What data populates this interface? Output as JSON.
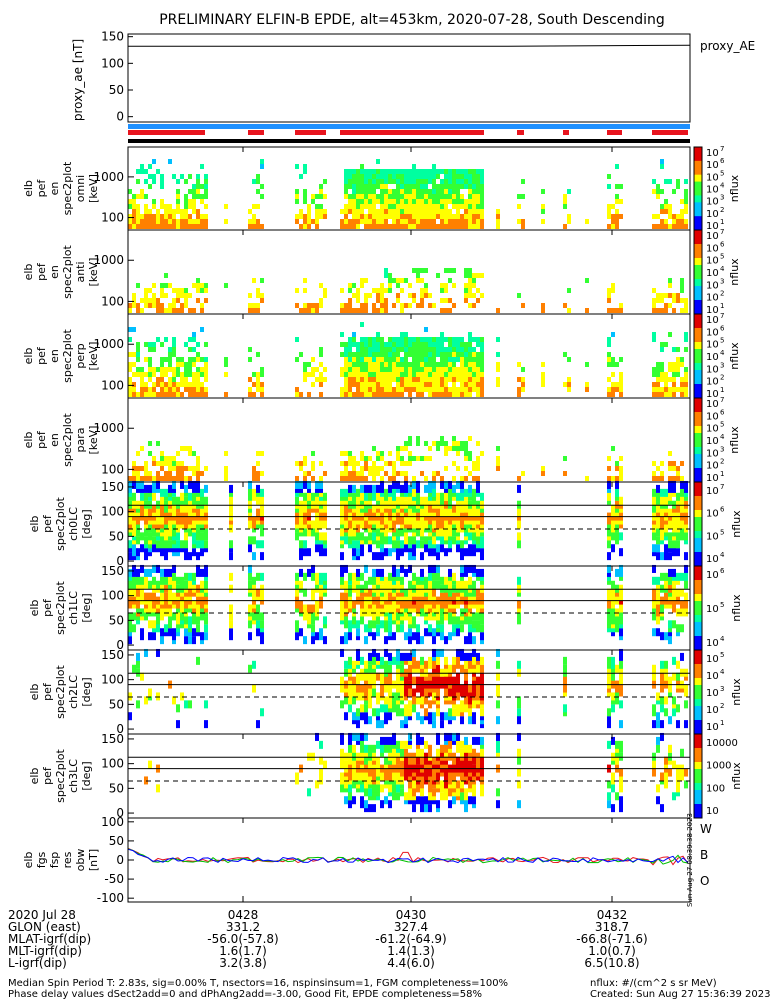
{
  "title": "PRELIMINARY ELFIN-B EPDE, alt=453km, 2020-07-28, South Descending",
  "colors": {
    "bar_blue": "#1e90ff",
    "bar_red": "#e8141e",
    "bar_black": "#000000"
  },
  "chart_data": [
    {
      "type": "line",
      "panel": "proxy_ae",
      "ylabel": "proxy_ae [nT]",
      "legend": "proxy_AE",
      "yticks": [
        "150",
        "100",
        "50",
        "0"
      ],
      "ylim": [
        -10,
        155
      ],
      "series": [
        {
          "name": "proxy_AE",
          "values": [
            132,
            132,
            132,
            132,
            132,
            133,
            134
          ]
        }
      ]
    },
    {
      "type": "heatmap",
      "panel": "spectra",
      "panels": [
        {
          "ylabel": [
            "elb",
            "pef",
            "en",
            "spec2plot",
            "omni",
            "[keV]"
          ],
          "yticks": [
            "1000",
            "100"
          ],
          "colorbar_ticks": [
            "10",
            "10",
            "10",
            "10",
            "10",
            "10",
            "10"
          ],
          "colorbar_exps": [
            "7",
            "6",
            "5",
            "4",
            "3",
            "2",
            "1"
          ],
          "zlabel": "nflux"
        },
        {
          "ylabel": [
            "elb",
            "pef",
            "en",
            "spec2plot",
            "anti",
            "[keV]"
          ],
          "yticks": [
            "1000",
            "100"
          ],
          "colorbar_ticks": [
            "10",
            "10",
            "10",
            "10",
            "10",
            "10",
            "10"
          ],
          "colorbar_exps": [
            "7",
            "6",
            "5",
            "4",
            "3",
            "2",
            "1"
          ],
          "zlabel": "nflux"
        },
        {
          "ylabel": [
            "elb",
            "pef",
            "en",
            "spec2plot",
            "perp",
            "[keV]"
          ],
          "yticks": [
            "1000",
            "100"
          ],
          "colorbar_ticks": [
            "10",
            "10",
            "10",
            "10",
            "10",
            "10",
            "10"
          ],
          "colorbar_exps": [
            "7",
            "6",
            "5",
            "4",
            "3",
            "2",
            "1"
          ],
          "zlabel": "nflux"
        },
        {
          "ylabel": [
            "elb",
            "pef",
            "en",
            "spec2plot",
            "para",
            "[keV]"
          ],
          "yticks": [
            "1000",
            "100"
          ],
          "colorbar_ticks": [
            "10",
            "10",
            "10",
            "10",
            "10",
            "10",
            "10"
          ],
          "colorbar_exps": [
            "7",
            "6",
            "5",
            "4",
            "3",
            "2",
            "1"
          ],
          "zlabel": "nflux"
        }
      ]
    },
    {
      "type": "heatmap",
      "panel": "pitch_angle",
      "panels": [
        {
          "ylabel": [
            "elb",
            "pef",
            "spec2plot",
            "ch0LC",
            "[deg]"
          ],
          "yticks": [
            "150",
            "100",
            "50",
            "0"
          ],
          "colorbar_ticks": [
            "10",
            "10",
            "10",
            "10"
          ],
          "colorbar_exps": [
            "7",
            "6",
            "5",
            "4"
          ],
          "zlabel": "nflux"
        },
        {
          "ylabel": [
            "elb",
            "pef",
            "spec2plot",
            "ch1LC",
            "[deg]"
          ],
          "yticks": [
            "150",
            "100",
            "50",
            "0"
          ],
          "colorbar_ticks": [
            "10",
            "10",
            "10"
          ],
          "colorbar_exps": [
            "6",
            "5",
            "4"
          ],
          "zlabel": "nflux"
        },
        {
          "ylabel": [
            "elb",
            "pef",
            "spec2plot",
            "ch2LC",
            "[deg]"
          ],
          "yticks": [
            "150",
            "100",
            "50",
            "0"
          ],
          "colorbar_ticks": [
            "10",
            "10",
            "10",
            "10",
            "10"
          ],
          "colorbar_exps": [
            "5",
            "4",
            "3",
            "2",
            "1"
          ],
          "zlabel": "nflux"
        },
        {
          "ylabel": [
            "elb",
            "pef",
            "spec2plot",
            "ch3LC",
            "[deg]"
          ],
          "yticks": [
            "150",
            "100",
            "50",
            "0"
          ],
          "colorbar_ticks": [
            "10000",
            "1000",
            "100",
            "10"
          ],
          "colorbar_exps": [
            "",
            "",
            "",
            ""
          ],
          "zlabel": "nflux"
        }
      ]
    },
    {
      "type": "line",
      "panel": "fgm",
      "ylabel": [
        "elb",
        "fgs",
        "fsp",
        "res",
        "obw",
        "[nT]"
      ],
      "yticks": [
        "100",
        "50",
        "0",
        "-50",
        "-100"
      ],
      "ylim": [
        -110,
        110
      ],
      "legend": [
        {
          "name": "W",
          "color": "#e8141e"
        },
        {
          "name": "B",
          "color": "#00c000"
        },
        {
          "name": "O",
          "color": "#0000ff"
        }
      ],
      "stamp": "Sun Aug 27 08:39:38 2023"
    }
  ],
  "xaxis": {
    "labels": [
      "2020 Jul 28",
      "GLON (east)",
      "MLAT-igrf(dip)",
      "MLT-igrf(dip)",
      "L-igrf(dip)"
    ],
    "ticks": [
      {
        "time": "0428",
        "glon": "331.2",
        "mlat": "-56.0(-57.8)",
        "mlt": "1.6(1.7)",
        "l": "3.2(3.8)"
      },
      {
        "time": "0430",
        "glon": "327.4",
        "mlat": "-61.2(-64.9)",
        "mlt": "1.4(1.3)",
        "l": "4.4(6.0)"
      },
      {
        "time": "0432",
        "glon": "318.7",
        "mlat": "-66.8(-71.6)",
        "mlt": "1.0(0.7)",
        "l": "6.5(10.8)"
      }
    ]
  },
  "footer": {
    "line1_left": "Median Spin Period T: 2.83s, sig=0.00% T, nsectors=16, nspinsinsum=1, FGM completeness=100%",
    "line2_left": "Phase delay values dSect2add=0 and dPhAng2add=-3.00, Good Fit, EPDE completeness=58%",
    "line1_right": "nflux: #/(cm^2 s sr MeV)",
    "line2_right": "Created: Sun Aug 27 15:36:39 2023"
  }
}
